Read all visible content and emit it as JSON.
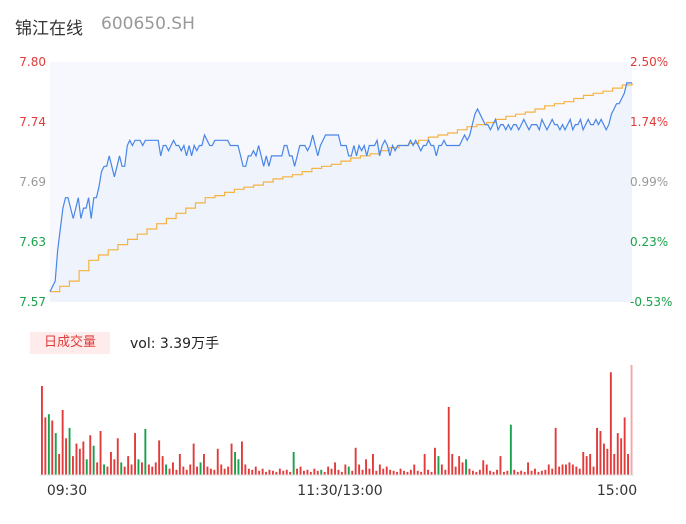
{
  "header": {
    "name": "锦江在线",
    "code": "600650.SH"
  },
  "volume": {
    "tab_label": "日成交量",
    "summary": "vol: 3.39万手"
  },
  "colors": {
    "up": "#e23b3b",
    "down": "#1aa14b",
    "price": "#4a86e8",
    "avg": "#f5b342",
    "neutral": "#999999"
  },
  "chart_data": {
    "type": "line",
    "price_ticks": [
      "7.80",
      "7.74",
      "7.69",
      "7.63",
      "7.57"
    ],
    "pct_ticks": [
      "2.50%",
      "1.74%",
      "0.99%",
      "0.23%",
      "-0.53%"
    ],
    "ylim": [
      7.57,
      7.8
    ],
    "time_ticks": [
      "09:30",
      "11:30/13:00",
      "15:00"
    ],
    "series": [
      {
        "key": "price",
        "values": [
          7.58,
          7.585,
          7.59,
          7.62,
          7.64,
          7.66,
          7.67,
          7.67,
          7.66,
          7.65,
          7.66,
          7.67,
          7.65,
          7.66,
          7.66,
          7.67,
          7.65,
          7.67,
          7.67,
          7.68,
          7.695,
          7.7,
          7.7,
          7.71,
          7.7,
          7.69,
          7.7,
          7.71,
          7.7,
          7.7,
          7.72,
          7.725,
          7.72,
          7.725,
          7.725,
          7.725,
          7.72,
          7.725,
          7.725,
          7.725,
          7.725,
          7.725,
          7.725,
          7.71,
          7.72,
          7.72,
          7.715,
          7.72,
          7.725,
          7.72,
          7.72,
          7.715,
          7.72,
          7.71,
          7.72,
          7.71,
          7.72,
          7.715,
          7.72,
          7.72,
          7.73,
          7.725,
          7.72,
          7.72,
          7.725,
          7.725,
          7.725,
          7.725,
          7.725,
          7.725,
          7.72,
          7.72,
          7.72,
          7.72,
          7.71,
          7.7,
          7.7,
          7.71,
          7.71,
          7.715,
          7.71,
          7.72,
          7.71,
          7.7,
          7.71,
          7.7,
          7.71,
          7.71,
          7.71,
          7.71,
          7.71,
          7.72,
          7.72,
          7.71,
          7.71,
          7.7,
          7.71,
          7.72,
          7.72,
          7.72,
          7.715,
          7.72,
          7.73,
          7.72,
          7.71,
          7.72,
          7.725,
          7.73,
          7.73,
          7.73,
          7.73,
          7.73,
          7.73,
          7.72,
          7.72,
          7.72,
          7.71,
          7.71,
          7.72,
          7.71,
          7.72,
          7.715,
          7.72,
          7.71,
          7.72,
          7.72,
          7.72,
          7.725,
          7.71,
          7.72,
          7.725,
          7.72,
          7.71,
          7.72,
          7.715,
          7.72,
          7.72,
          7.72,
          7.72,
          7.72,
          7.725,
          7.72,
          7.725,
          7.72,
          7.715,
          7.72,
          7.72,
          7.725,
          7.72,
          7.72,
          7.71,
          7.72,
          7.72,
          7.725,
          7.72,
          7.72,
          7.72,
          7.72,
          7.72,
          7.72,
          7.725,
          7.73,
          7.725,
          7.73,
          7.74,
          7.75,
          7.755,
          7.75,
          7.745,
          7.74,
          7.74,
          7.735,
          7.74,
          7.745,
          7.735,
          7.74,
          7.74,
          7.735,
          7.74,
          7.735,
          7.74,
          7.74,
          7.735,
          7.74,
          7.745,
          7.74,
          7.735,
          7.74,
          7.74,
          7.74,
          7.735,
          7.745,
          7.74,
          7.735,
          7.74,
          7.745,
          7.74,
          7.74,
          7.735,
          7.74,
          7.735,
          7.74,
          7.745,
          7.735,
          7.74,
          7.74,
          7.745,
          7.735,
          7.74,
          7.745,
          7.74,
          7.74,
          7.745,
          7.74,
          7.745,
          7.74,
          7.735,
          7.74,
          7.75,
          7.755,
          7.76,
          7.76,
          7.765,
          7.77,
          7.78,
          7.78,
          7.78
        ]
      },
      {
        "key": "avg",
        "values": [
          7.58,
          7.585,
          7.59,
          7.6,
          7.61,
          7.615,
          7.62,
          7.625,
          7.63,
          7.635,
          7.64,
          7.645,
          7.65,
          7.655,
          7.66,
          7.665,
          7.67,
          7.672,
          7.675,
          7.678,
          7.68,
          7.682,
          7.685,
          7.688,
          7.69,
          7.692,
          7.695,
          7.698,
          7.7,
          7.702,
          7.705,
          7.708,
          7.71,
          7.712,
          7.715,
          7.718,
          7.72,
          7.722,
          7.725,
          7.728,
          7.73,
          7.732,
          7.735,
          7.738,
          7.74,
          7.742,
          7.745,
          7.748,
          7.75,
          7.752,
          7.755,
          7.758,
          7.76,
          7.762,
          7.765,
          7.768,
          7.77,
          7.772,
          7.775,
          7.778,
          7.78
        ]
      }
    ],
    "volume_bars": [
      {
        "v": 85,
        "d": "up"
      },
      {
        "v": 55,
        "d": "up"
      },
      {
        "v": 58,
        "d": "down"
      },
      {
        "v": 52,
        "d": "up"
      },
      {
        "v": 40,
        "d": "down"
      },
      {
        "v": 20,
        "d": "up"
      },
      {
        "v": 62,
        "d": "up"
      },
      {
        "v": 35,
        "d": "up"
      },
      {
        "v": 45,
        "d": "down"
      },
      {
        "v": 18,
        "d": "up"
      },
      {
        "v": 30,
        "d": "up"
      },
      {
        "v": 25,
        "d": "up"
      },
      {
        "v": 32,
        "d": "up"
      },
      {
        "v": 15,
        "d": "down"
      },
      {
        "v": 38,
        "d": "up"
      },
      {
        "v": 28,
        "d": "down"
      },
      {
        "v": 12,
        "d": "up"
      },
      {
        "v": 42,
        "d": "up"
      },
      {
        "v": 10,
        "d": "down"
      },
      {
        "v": 8,
        "d": "up"
      },
      {
        "v": 22,
        "d": "up"
      },
      {
        "v": 15,
        "d": "up"
      },
      {
        "v": 35,
        "d": "up"
      },
      {
        "v": 12,
        "d": "down"
      },
      {
        "v": 8,
        "d": "up"
      },
      {
        "v": 18,
        "d": "up"
      },
      {
        "v": 10,
        "d": "up"
      },
      {
        "v": 40,
        "d": "up"
      },
      {
        "v": 15,
        "d": "down"
      },
      {
        "v": 12,
        "d": "up"
      },
      {
        "v": 44,
        "d": "down"
      },
      {
        "v": 10,
        "d": "up"
      },
      {
        "v": 8,
        "d": "up"
      },
      {
        "v": 12,
        "d": "up"
      },
      {
        "v": 33,
        "d": "up"
      },
      {
        "v": 18,
        "d": "up"
      },
      {
        "v": 10,
        "d": "down"
      },
      {
        "v": 6,
        "d": "up"
      },
      {
        "v": 12,
        "d": "up"
      },
      {
        "v": 5,
        "d": "up"
      },
      {
        "v": 20,
        "d": "up"
      },
      {
        "v": 8,
        "d": "up"
      },
      {
        "v": 5,
        "d": "up"
      },
      {
        "v": 10,
        "d": "up"
      },
      {
        "v": 30,
        "d": "up"
      },
      {
        "v": 8,
        "d": "up"
      },
      {
        "v": 12,
        "d": "down"
      },
      {
        "v": 20,
        "d": "up"
      },
      {
        "v": 8,
        "d": "up"
      },
      {
        "v": 6,
        "d": "up"
      },
      {
        "v": 5,
        "d": "up"
      },
      {
        "v": 25,
        "d": "up"
      },
      {
        "v": 10,
        "d": "up"
      },
      {
        "v": 6,
        "d": "up"
      },
      {
        "v": 8,
        "d": "up"
      },
      {
        "v": 30,
        "d": "up"
      },
      {
        "v": 22,
        "d": "down"
      },
      {
        "v": 15,
        "d": "down"
      },
      {
        "v": 32,
        "d": "up"
      },
      {
        "v": 10,
        "d": "up"
      },
      {
        "v": 6,
        "d": "up"
      },
      {
        "v": 5,
        "d": "up"
      },
      {
        "v": 8,
        "d": "up"
      },
      {
        "v": 4,
        "d": "up"
      },
      {
        "v": 6,
        "d": "up"
      },
      {
        "v": 3,
        "d": "up"
      },
      {
        "v": 5,
        "d": "up"
      },
      {
        "v": 4,
        "d": "up"
      },
      {
        "v": 3,
        "d": "up"
      },
      {
        "v": 6,
        "d": "up"
      },
      {
        "v": 4,
        "d": "up"
      },
      {
        "v": 5,
        "d": "up"
      },
      {
        "v": 3,
        "d": "up"
      },
      {
        "v": 22,
        "d": "down"
      },
      {
        "v": 6,
        "d": "up"
      },
      {
        "v": 8,
        "d": "up"
      },
      {
        "v": 4,
        "d": "up"
      },
      {
        "v": 5,
        "d": "up"
      },
      {
        "v": 3,
        "d": "up"
      },
      {
        "v": 6,
        "d": "up"
      },
      {
        "v": 4,
        "d": "up"
      },
      {
        "v": 5,
        "d": "down"
      },
      {
        "v": 3,
        "d": "up"
      },
      {
        "v": 8,
        "d": "up"
      },
      {
        "v": 6,
        "d": "up"
      },
      {
        "v": 12,
        "d": "up"
      },
      {
        "v": 5,
        "d": "up"
      },
      {
        "v": 3,
        "d": "up"
      },
      {
        "v": 10,
        "d": "up"
      },
      {
        "v": 8,
        "d": "down"
      },
      {
        "v": 4,
        "d": "up"
      },
      {
        "v": 26,
        "d": "up"
      },
      {
        "v": 10,
        "d": "up"
      },
      {
        "v": 5,
        "d": "up"
      },
      {
        "v": 15,
        "d": "up"
      },
      {
        "v": 6,
        "d": "up"
      },
      {
        "v": 20,
        "d": "up"
      },
      {
        "v": 4,
        "d": "up"
      },
      {
        "v": 10,
        "d": "up"
      },
      {
        "v": 6,
        "d": "up"
      },
      {
        "v": 8,
        "d": "up"
      },
      {
        "v": 5,
        "d": "up"
      },
      {
        "v": 4,
        "d": "up"
      },
      {
        "v": 3,
        "d": "up"
      },
      {
        "v": 6,
        "d": "up"
      },
      {
        "v": 4,
        "d": "up"
      },
      {
        "v": 3,
        "d": "up"
      },
      {
        "v": 5,
        "d": "up"
      },
      {
        "v": 10,
        "d": "up"
      },
      {
        "v": 4,
        "d": "up"
      },
      {
        "v": 3,
        "d": "up"
      },
      {
        "v": 20,
        "d": "up"
      },
      {
        "v": 5,
        "d": "up"
      },
      {
        "v": 3,
        "d": "up"
      },
      {
        "v": 26,
        "d": "up"
      },
      {
        "v": 18,
        "d": "down"
      },
      {
        "v": 10,
        "d": "up"
      },
      {
        "v": 5,
        "d": "up"
      },
      {
        "v": 65,
        "d": "up"
      },
      {
        "v": 20,
        "d": "up"
      },
      {
        "v": 8,
        "d": "up"
      },
      {
        "v": 18,
        "d": "up"
      },
      {
        "v": 12,
        "d": "up"
      },
      {
        "v": 15,
        "d": "down"
      },
      {
        "v": 6,
        "d": "up"
      },
      {
        "v": 4,
        "d": "up"
      },
      {
        "v": 3,
        "d": "up"
      },
      {
        "v": 5,
        "d": "up"
      },
      {
        "v": 14,
        "d": "up"
      },
      {
        "v": 10,
        "d": "up"
      },
      {
        "v": 4,
        "d": "up"
      },
      {
        "v": 3,
        "d": "up"
      },
      {
        "v": 5,
        "d": "up"
      },
      {
        "v": 18,
        "d": "up"
      },
      {
        "v": 3,
        "d": "up"
      },
      {
        "v": 4,
        "d": "up"
      },
      {
        "v": 48,
        "d": "down"
      },
      {
        "v": 5,
        "d": "up"
      },
      {
        "v": 3,
        "d": "up"
      },
      {
        "v": 4,
        "d": "up"
      },
      {
        "v": 3,
        "d": "up"
      },
      {
        "v": 12,
        "d": "up"
      },
      {
        "v": 4,
        "d": "up"
      },
      {
        "v": 6,
        "d": "up"
      },
      {
        "v": 3,
        "d": "up"
      },
      {
        "v": 4,
        "d": "up"
      },
      {
        "v": 5,
        "d": "up"
      },
      {
        "v": 10,
        "d": "up"
      },
      {
        "v": 6,
        "d": "up"
      },
      {
        "v": 45,
        "d": "up"
      },
      {
        "v": 8,
        "d": "up"
      },
      {
        "v": 10,
        "d": "up"
      },
      {
        "v": 10,
        "d": "up"
      },
      {
        "v": 12,
        "d": "up"
      },
      {
        "v": 10,
        "d": "up"
      },
      {
        "v": 8,
        "d": "up"
      },
      {
        "v": 6,
        "d": "up"
      },
      {
        "v": 22,
        "d": "up"
      },
      {
        "v": 18,
        "d": "up"
      },
      {
        "v": 20,
        "d": "up"
      },
      {
        "v": 8,
        "d": "up"
      },
      {
        "v": 45,
        "d": "up"
      },
      {
        "v": 42,
        "d": "up"
      },
      {
        "v": 30,
        "d": "up"
      },
      {
        "v": 25,
        "d": "up"
      },
      {
        "v": 98,
        "d": "up"
      },
      {
        "v": 20,
        "d": "up"
      },
      {
        "v": 40,
        "d": "up"
      },
      {
        "v": 35,
        "d": "up"
      },
      {
        "v": 55,
        "d": "up"
      },
      {
        "v": 20,
        "d": "up"
      },
      {
        "v": 105,
        "d": "up"
      }
    ]
  }
}
